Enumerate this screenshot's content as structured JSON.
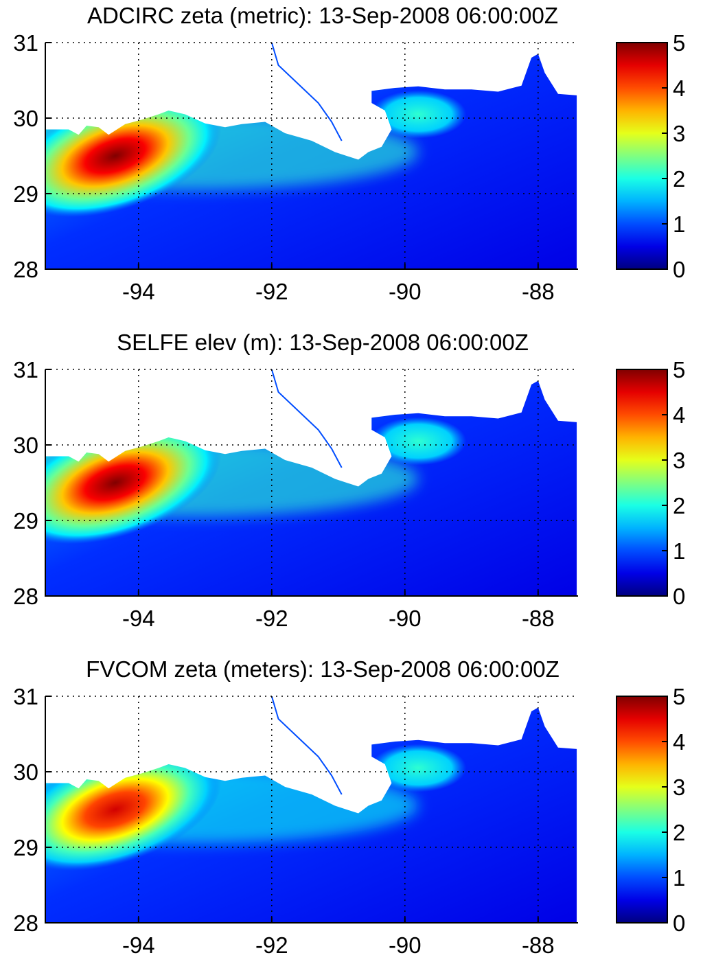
{
  "chart_data": [
    {
      "type": "heatmap",
      "title": "ADCIRC zeta (metric): 13-Sep-2008 06:00:00Z",
      "xlim": [
        -95.4,
        -87.4
      ],
      "ylim": [
        28,
        31
      ],
      "xticks": [
        -94,
        -92,
        -90,
        -88
      ],
      "xtick_labels": [
        "-94",
        "-92",
        "-90",
        "-88"
      ],
      "yticks": [
        28,
        29,
        30,
        31
      ],
      "ytick_labels": [
        "28",
        "29",
        "30",
        "31"
      ],
      "grid": true,
      "colorbar": {
        "range": [
          0,
          5
        ],
        "ticks": [
          "0",
          "1",
          "2",
          "3",
          "4",
          "5"
        ],
        "colormap": "jet"
      },
      "features": {
        "peak_value": 5.0,
        "peak_location": [
          -94.7,
          29.35
        ],
        "max_intensity": 1.0
      }
    },
    {
      "type": "heatmap",
      "title": "SELFE elev (m): 13-Sep-2008 06:00:00Z",
      "xlim": [
        -95.4,
        -87.4
      ],
      "ylim": [
        28,
        31
      ],
      "xticks": [
        -94,
        -92,
        -90,
        -88
      ],
      "xtick_labels": [
        "-94",
        "-92",
        "-90",
        "-88"
      ],
      "yticks": [
        28,
        29,
        30,
        31
      ],
      "ytick_labels": [
        "28",
        "29",
        "30",
        "31"
      ],
      "grid": true,
      "colorbar": {
        "range": [
          0,
          5
        ],
        "ticks": [
          "0",
          "1",
          "2",
          "3",
          "4",
          "5"
        ],
        "colormap": "jet"
      },
      "features": {
        "peak_value": 5.0,
        "peak_location": [
          -94.7,
          29.35
        ],
        "max_intensity": 1.0
      }
    },
    {
      "type": "heatmap",
      "title": "FVCOM zeta (meters): 13-Sep-2008 06:00:00Z",
      "xlim": [
        -95.4,
        -87.4
      ],
      "ylim": [
        28,
        31
      ],
      "xticks": [
        -94,
        -92,
        -90,
        -88
      ],
      "xtick_labels": [
        "-94",
        "-92",
        "-90",
        "-88"
      ],
      "yticks": [
        28,
        29,
        30,
        31
      ],
      "ytick_labels": [
        "28",
        "29",
        "30",
        "31"
      ],
      "grid": true,
      "colorbar": {
        "range": [
          0,
          5
        ],
        "ticks": [
          "0",
          "1",
          "2",
          "3",
          "4",
          "5"
        ],
        "colormap": "jet"
      },
      "features": {
        "peak_value": 4.6,
        "peak_location": [
          -94.7,
          29.35
        ],
        "max_intensity": 0.92
      }
    }
  ]
}
